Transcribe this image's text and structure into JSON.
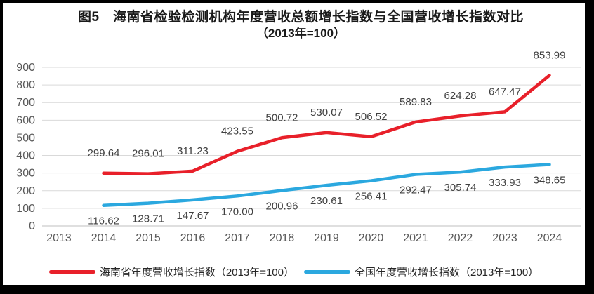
{
  "chart_data": {
    "type": "line",
    "title": "图5　海南省检验检测机构年度营收总额增长指数与全国营收增长指数对比",
    "subtitle": "（2013年=100）",
    "categories": [
      "2013",
      "2014",
      "2015",
      "2016",
      "2017",
      "2018",
      "2019",
      "2020",
      "2021",
      "2022",
      "2023",
      "2024"
    ],
    "series": [
      {
        "name": "海南省年度营收增长指数（2013年=100）",
        "color": "#e8202a",
        "label_position": "above",
        "values": [
          null,
          299.64,
          296.01,
          311.23,
          423.55,
          500.72,
          530.07,
          506.52,
          589.83,
          624.28,
          647.47,
          853.99
        ]
      },
      {
        "name": "全国年度营收增长指数（2013年=100）",
        "color": "#2ba8df",
        "label_position": "below",
        "values": [
          null,
          116.62,
          128.71,
          147.67,
          170.0,
          200.96,
          230.61,
          256.41,
          292.47,
          305.74,
          333.93,
          348.65
        ]
      }
    ],
    "y_ticks": [
      0,
      100,
      200,
      300,
      400,
      500,
      600,
      700,
      800,
      900
    ],
    "ylim": [
      0,
      900
    ],
    "grid": true,
    "legend_position": "bottom",
    "colors": {
      "gridline": "#d9d9d9",
      "axis_line": "#bfbfbf",
      "tick_label": "#595959",
      "data_label": "#404040",
      "title": "#1a1a1a"
    }
  }
}
